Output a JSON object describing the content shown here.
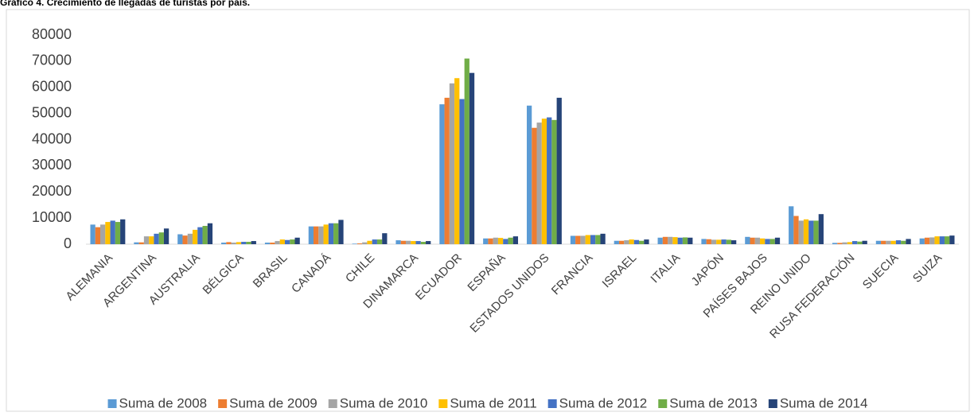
{
  "chart_data": {
    "type": "bar",
    "title": "Gráfico 4. Crecimiento de llegadas de turistas por país.",
    "categories": [
      "ALEMANIA",
      "ARGENTINA",
      "AUSTRALIA",
      "BÉLGICA",
      "BRASIL",
      "CANADÁ",
      "CHILE",
      "DINAMARCA",
      "ECUADOR",
      "ESPAÑA",
      "ESTADOS UNIDOS",
      "FRANCIA",
      "ISRAEL",
      "ITALIA",
      "JAPÓN",
      "PAÍSES BAJOS",
      "REINO UNIDO",
      "RUSA FEDERACIÓN",
      "SUECIA",
      "SUIZA"
    ],
    "series": [
      {
        "name": "Suma de 2008",
        "color": "#5b9bd5",
        "values": [
          7500,
          700,
          3800,
          600,
          600,
          6800,
          200,
          1500,
          53500,
          2200,
          53000,
          3200,
          1300,
          2500,
          2000,
          2800,
          14500,
          500,
          1300,
          2200
        ]
      },
      {
        "name": "Suma de 2009",
        "color": "#ed7d31",
        "values": [
          6500,
          700,
          3300,
          800,
          600,
          6800,
          300,
          1300,
          56000,
          2200,
          44500,
          3200,
          1300,
          2800,
          1900,
          2500,
          10800,
          500,
          1300,
          2500
        ]
      },
      {
        "name": "Suma de 2010",
        "color": "#a5a5a5",
        "values": [
          7500,
          3000,
          4000,
          600,
          1200,
          6800,
          700,
          1300,
          61500,
          2500,
          46500,
          3200,
          1500,
          2800,
          1700,
          2500,
          9000,
          700,
          1300,
          2600
        ]
      },
      {
        "name": "Suma de 2011",
        "color": "#ffc000",
        "values": [
          8500,
          3000,
          5500,
          800,
          1800,
          7500,
          1300,
          1200,
          63500,
          2400,
          48000,
          3500,
          1800,
          2700,
          1700,
          2200,
          9500,
          800,
          1300,
          3000
        ]
      },
      {
        "name": "Suma de 2012",
        "color": "#4472c4",
        "values": [
          9000,
          4000,
          6500,
          900,
          1600,
          8000,
          1800,
          1200,
          55500,
          2000,
          48500,
          3500,
          1600,
          2500,
          1800,
          2000,
          9000,
          1200,
          1500,
          3000
        ]
      },
      {
        "name": "Suma de 2013",
        "color": "#70ad47",
        "values": [
          8500,
          4500,
          7000,
          900,
          1800,
          8000,
          1800,
          900,
          71000,
          2500,
          47500,
          3500,
          1300,
          2600,
          1700,
          2000,
          9000,
          1000,
          1300,
          3000
        ]
      },
      {
        "name": "Suma de 2014",
        "color": "#264478",
        "values": [
          9500,
          6000,
          8000,
          1200,
          2500,
          9300,
          4200,
          1200,
          65500,
          3000,
          56000,
          4000,
          1800,
          2500,
          1500,
          2500,
          11500,
          1300,
          2000,
          3300
        ]
      }
    ],
    "ylim": [
      0,
      80000
    ],
    "yticks": [
      0,
      10000,
      20000,
      30000,
      40000,
      50000,
      60000,
      70000,
      80000
    ],
    "grid": false,
    "legend": "bottom"
  }
}
